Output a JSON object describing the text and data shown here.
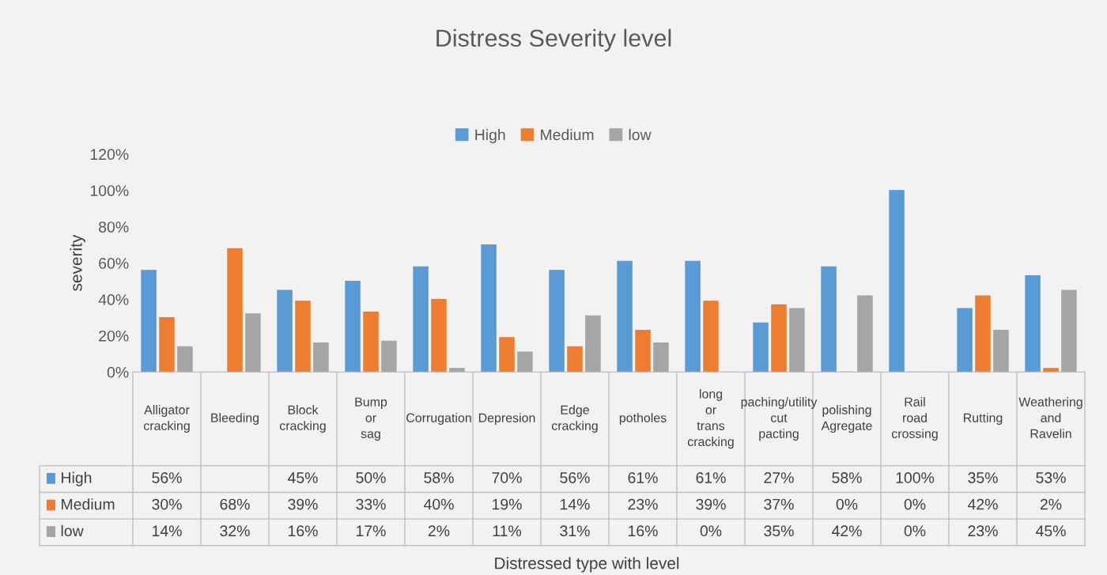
{
  "chart_data": {
    "type": "bar",
    "title": "Distress Severity level",
    "annotations": [
      "Distressed type with level"
    ],
    "ylabel": "severity",
    "categories": [
      "Alligator cracking",
      "Bleeding",
      "Block cracking",
      "Bump or sag",
      "Corrugation",
      "Depresion",
      "Edge cracking",
      "potholes",
      "long or trans cracking",
      "paching/utility cut pacting",
      "polishing Agregate",
      "Rail road crossing",
      "Rutting",
      "Weathering and Ravelin"
    ],
    "series": [
      {
        "name": "High",
        "color": "#5b9bd5",
        "values": [
          56,
          null,
          45,
          50,
          58,
          70,
          56,
          61,
          61,
          27,
          58,
          100,
          35,
          53
        ],
        "value_labels": [
          "56%",
          null,
          "45%",
          "50%",
          "58%",
          "70%",
          "56%",
          "61%",
          "61%",
          "27%",
          "58%",
          "100%",
          "35%",
          "53%"
        ]
      },
      {
        "name": "Medium",
        "color": "#ed7d31",
        "values": [
          30,
          68,
          39,
          33,
          40,
          19,
          14,
          23,
          39,
          37,
          0,
          0,
          42,
          2
        ],
        "value_labels": [
          "30%",
          "68%",
          "39%",
          "33%",
          "40%",
          "19%",
          "14%",
          "23%",
          "39%",
          "37%",
          "0%",
          "0%",
          "42%",
          "2%"
        ]
      },
      {
        "name": "low",
        "color": "#a5a5a5",
        "values": [
          14,
          32,
          16,
          17,
          2,
          11,
          31,
          16,
          0,
          35,
          42,
          0,
          23,
          45
        ],
        "value_labels": [
          "14%",
          "32%",
          "16%",
          "17%",
          "2%",
          "11%",
          "31%",
          "16%",
          "0%",
          "35%",
          "42%",
          "0%",
          "23%",
          "45%"
        ]
      }
    ],
    "ylim": [
      0,
      120
    ],
    "yticks": [
      {
        "value": 0,
        "label": "0%"
      },
      {
        "value": 20,
        "label": "20%"
      },
      {
        "value": 40,
        "label": "40%"
      },
      {
        "value": 60,
        "label": "60%"
      },
      {
        "value": 80,
        "label": "80%"
      },
      {
        "value": 100,
        "label": "100%"
      },
      {
        "value": 120,
        "label": "120%"
      }
    ],
    "legend": "top"
  }
}
